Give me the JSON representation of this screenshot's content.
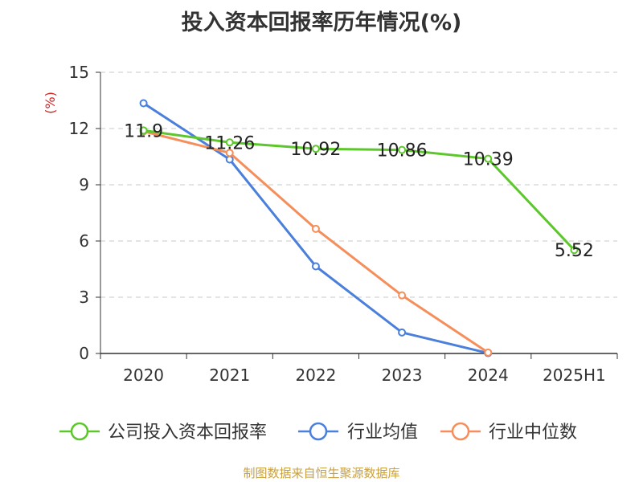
{
  "chart_data": {
    "type": "line",
    "title": "投入资本回报率历年情况(%)",
    "ylabel": "(%)",
    "categories": [
      "2020",
      "2021",
      "2022",
      "2023",
      "2024",
      "2025H1"
    ],
    "ylim": [
      0,
      15
    ],
    "yticks": [
      0,
      3,
      6,
      9,
      12,
      15
    ],
    "grid": true,
    "legend_position": "bottom",
    "series": [
      {
        "name": "公司投入资本回报率",
        "color": "#5cc72a",
        "values": [
          11.9,
          11.26,
          10.92,
          10.86,
          10.39,
          5.52
        ],
        "labels": [
          "11.9",
          "11.26",
          "10.92",
          "10.86",
          "10.39",
          "5.52"
        ]
      },
      {
        "name": "行业均值",
        "color": "#4a7fdc",
        "values": [
          13.35,
          10.35,
          4.65,
          1.12,
          0.02,
          null
        ]
      },
      {
        "name": "行业中位数",
        "color": "#f58e5a",
        "values": [
          11.85,
          10.7,
          6.65,
          3.1,
          0.05,
          null
        ]
      }
    ]
  },
  "footer": {
    "source": "制图数据来自恒生聚源数据库"
  }
}
